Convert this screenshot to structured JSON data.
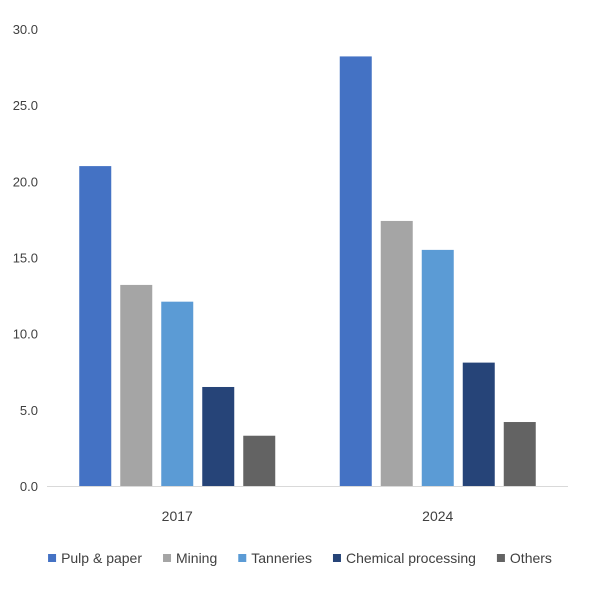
{
  "chart_data": {
    "type": "bar",
    "title": "",
    "xlabel": "",
    "ylabel": "",
    "categories": [
      "2017",
      "2024"
    ],
    "ylim": [
      0,
      30
    ],
    "yticks": [
      "0.0",
      "5.0",
      "10.0",
      "15.0",
      "20.0",
      "25.0",
      "30.0"
    ],
    "grid": false,
    "legend_position": "bottom",
    "series": [
      {
        "name": "Pulp & paper",
        "color": "#4472c4",
        "values": [
          21.0,
          28.2
        ]
      },
      {
        "name": "Mining",
        "color": "#a5a5a5",
        "values": [
          13.2,
          17.4
        ]
      },
      {
        "name": "Tanneries",
        "color": "#5b9bd5",
        "values": [
          12.1,
          15.5
        ]
      },
      {
        "name": "Chemical processing",
        "color": "#264478",
        "values": [
          6.5,
          8.1
        ]
      },
      {
        "name": "Others",
        "color": "#636363",
        "values": [
          3.3,
          4.2
        ]
      }
    ]
  }
}
